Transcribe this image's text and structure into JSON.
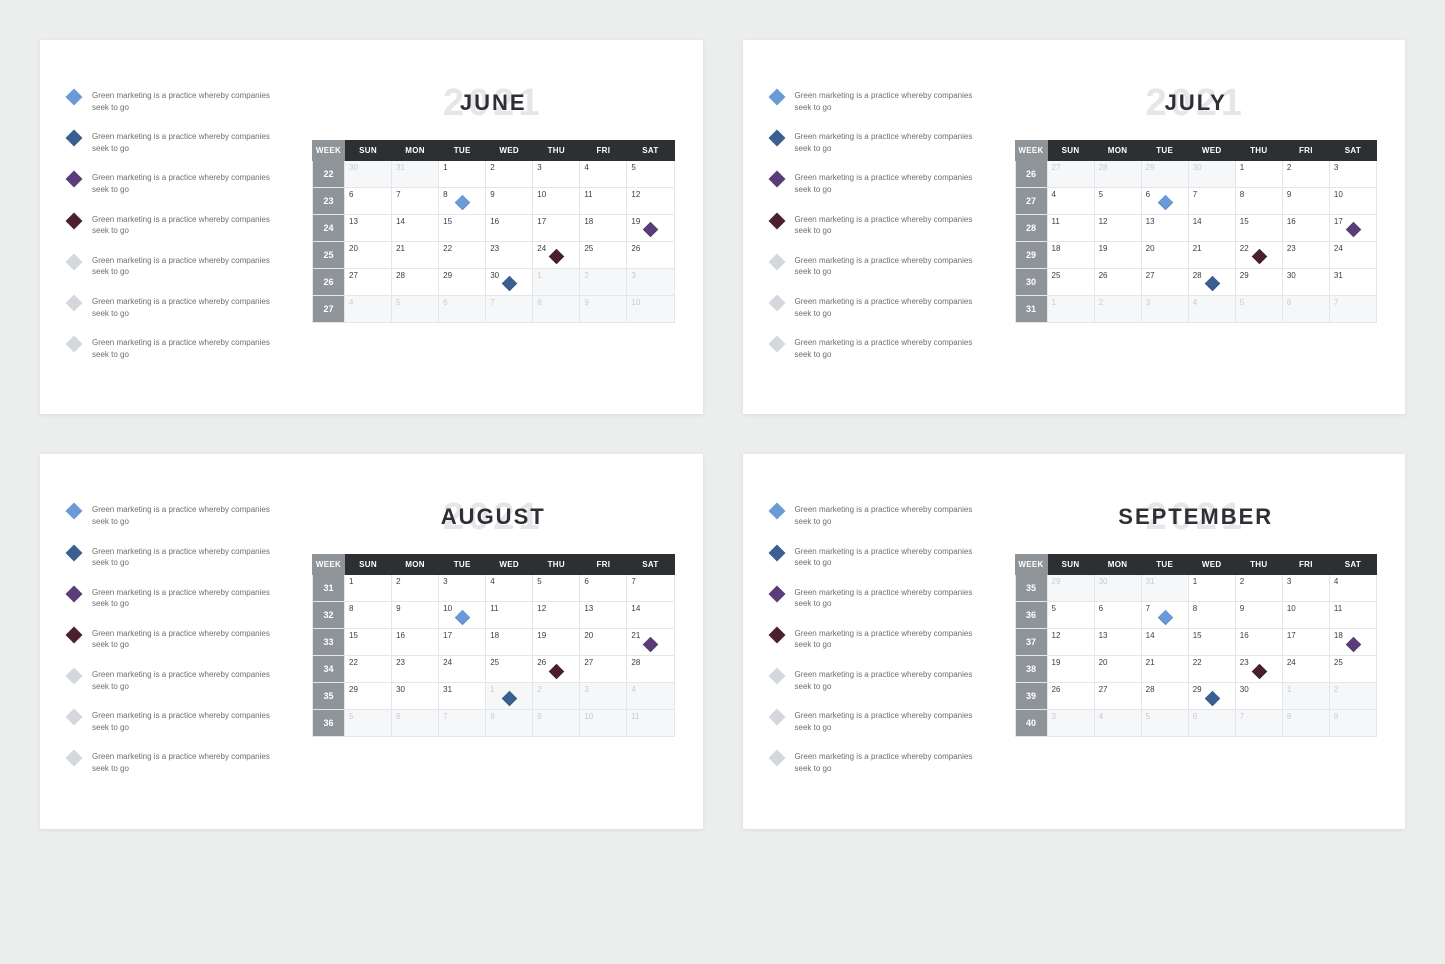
{
  "background_color": "#eceded",
  "slide_bg": "#ffffff",
  "legend_text": "Green marketing is a practice whereby companies seek to go",
  "legend_colors": [
    "#6a9bd8",
    "#3b5f91",
    "#5a3d78",
    "#4a1f2e",
    "#d4d7dc",
    "#d4d7dc",
    "#d4d7dc"
  ],
  "diamond_events_colors": {
    "blue_light": "#6a9bd8",
    "blue_dark": "#3b5f91",
    "purple": "#5a3d78",
    "maroon": "#4a1f2e",
    "gray": "#d4d7dc"
  },
  "year": "2021",
  "day_headers": [
    "WEEK",
    "SUN",
    "MON",
    "TUE",
    "WED",
    "THU",
    "FRI",
    "SAT"
  ],
  "header_bg": "#2d2f33",
  "header_color": "#ffffff",
  "week_col_bg": "#8f9499",
  "border_color": "#e4e6e9",
  "other_month_text": "#c8cbd0",
  "slides": [
    {
      "month": "JUNE",
      "year": "2021",
      "rows": [
        {
          "week": "22",
          "cells": [
            {
              "n": "30",
              "other": true
            },
            {
              "n": "31",
              "other": true
            },
            {
              "n": "1"
            },
            {
              "n": "2"
            },
            {
              "n": "3"
            },
            {
              "n": "4"
            },
            {
              "n": "5"
            }
          ]
        },
        {
          "week": "23",
          "cells": [
            {
              "n": "6"
            },
            {
              "n": "7"
            },
            {
              "n": "8",
              "marker": "blue_light"
            },
            {
              "n": "9"
            },
            {
              "n": "10"
            },
            {
              "n": "11"
            },
            {
              "n": "12"
            }
          ]
        },
        {
          "week": "24",
          "cells": [
            {
              "n": "13"
            },
            {
              "n": "14"
            },
            {
              "n": "15"
            },
            {
              "n": "16"
            },
            {
              "n": "17"
            },
            {
              "n": "18"
            },
            {
              "n": "19",
              "marker": "purple"
            }
          ]
        },
        {
          "week": "25",
          "cells": [
            {
              "n": "20"
            },
            {
              "n": "21"
            },
            {
              "n": "22"
            },
            {
              "n": "23"
            },
            {
              "n": "24",
              "marker": "maroon"
            },
            {
              "n": "25"
            },
            {
              "n": "26"
            }
          ]
        },
        {
          "week": "26",
          "cells": [
            {
              "n": "27"
            },
            {
              "n": "28"
            },
            {
              "n": "29"
            },
            {
              "n": "30",
              "marker": "blue_dark"
            },
            {
              "n": "1",
              "other": true
            },
            {
              "n": "2",
              "other": true
            },
            {
              "n": "3",
              "other": true
            }
          ]
        },
        {
          "week": "27",
          "cells": [
            {
              "n": "4",
              "other": true
            },
            {
              "n": "5",
              "other": true
            },
            {
              "n": "6",
              "other": true
            },
            {
              "n": "7",
              "other": true
            },
            {
              "n": "8",
              "other": true
            },
            {
              "n": "9",
              "other": true
            },
            {
              "n": "10",
              "other": true
            }
          ]
        }
      ]
    },
    {
      "month": "JULY",
      "year": "2021",
      "rows": [
        {
          "week": "26",
          "cells": [
            {
              "n": "27",
              "other": true
            },
            {
              "n": "28",
              "other": true
            },
            {
              "n": "29",
              "other": true
            },
            {
              "n": "30",
              "other": true
            },
            {
              "n": "1"
            },
            {
              "n": "2"
            },
            {
              "n": "3"
            }
          ]
        },
        {
          "week": "27",
          "cells": [
            {
              "n": "4"
            },
            {
              "n": "5"
            },
            {
              "n": "6",
              "marker": "blue_light"
            },
            {
              "n": "7"
            },
            {
              "n": "8"
            },
            {
              "n": "9"
            },
            {
              "n": "10"
            }
          ]
        },
        {
          "week": "28",
          "cells": [
            {
              "n": "11"
            },
            {
              "n": "12"
            },
            {
              "n": "13"
            },
            {
              "n": "14"
            },
            {
              "n": "15"
            },
            {
              "n": "16"
            },
            {
              "n": "17",
              "marker": "purple"
            }
          ]
        },
        {
          "week": "29",
          "cells": [
            {
              "n": "18"
            },
            {
              "n": "19"
            },
            {
              "n": "20"
            },
            {
              "n": "21"
            },
            {
              "n": "22",
              "marker": "maroon"
            },
            {
              "n": "23"
            },
            {
              "n": "24"
            }
          ]
        },
        {
          "week": "30",
          "cells": [
            {
              "n": "25"
            },
            {
              "n": "26"
            },
            {
              "n": "27"
            },
            {
              "n": "28",
              "marker": "blue_dark"
            },
            {
              "n": "29"
            },
            {
              "n": "30"
            },
            {
              "n": "31"
            }
          ]
        },
        {
          "week": "31",
          "cells": [
            {
              "n": "1",
              "other": true
            },
            {
              "n": "2",
              "other": true
            },
            {
              "n": "3",
              "other": true
            },
            {
              "n": "4",
              "other": true
            },
            {
              "n": "5",
              "other": true
            },
            {
              "n": "6",
              "other": true
            },
            {
              "n": "7",
              "other": true
            }
          ]
        }
      ]
    },
    {
      "month": "AUGUST",
      "year": "2021",
      "rows": [
        {
          "week": "31",
          "cells": [
            {
              "n": "1"
            },
            {
              "n": "2"
            },
            {
              "n": "3"
            },
            {
              "n": "4"
            },
            {
              "n": "5"
            },
            {
              "n": "6"
            },
            {
              "n": "7"
            }
          ]
        },
        {
          "week": "32",
          "cells": [
            {
              "n": "8"
            },
            {
              "n": "9"
            },
            {
              "n": "10",
              "marker": "blue_light"
            },
            {
              "n": "11"
            },
            {
              "n": "12"
            },
            {
              "n": "13"
            },
            {
              "n": "14"
            }
          ]
        },
        {
          "week": "33",
          "cells": [
            {
              "n": "15"
            },
            {
              "n": "16"
            },
            {
              "n": "17"
            },
            {
              "n": "18"
            },
            {
              "n": "19"
            },
            {
              "n": "20"
            },
            {
              "n": "21",
              "marker": "purple"
            }
          ]
        },
        {
          "week": "34",
          "cells": [
            {
              "n": "22"
            },
            {
              "n": "23"
            },
            {
              "n": "24"
            },
            {
              "n": "25"
            },
            {
              "n": "26",
              "marker": "maroon"
            },
            {
              "n": "27"
            },
            {
              "n": "28"
            }
          ]
        },
        {
          "week": "35",
          "cells": [
            {
              "n": "29"
            },
            {
              "n": "30"
            },
            {
              "n": "31"
            },
            {
              "n": "1",
              "other": true,
              "marker": "blue_dark"
            },
            {
              "n": "2",
              "other": true
            },
            {
              "n": "3",
              "other": true
            },
            {
              "n": "4",
              "other": true
            }
          ]
        },
        {
          "week": "36",
          "cells": [
            {
              "n": "5",
              "other": true
            },
            {
              "n": "6",
              "other": true
            },
            {
              "n": "7",
              "other": true
            },
            {
              "n": "8",
              "other": true
            },
            {
              "n": "9",
              "other": true
            },
            {
              "n": "10",
              "other": true
            },
            {
              "n": "11",
              "other": true
            }
          ]
        }
      ]
    },
    {
      "month": "SEPTEMBER",
      "year": "2021",
      "rows": [
        {
          "week": "35",
          "cells": [
            {
              "n": "29",
              "other": true
            },
            {
              "n": "30",
              "other": true
            },
            {
              "n": "31",
              "other": true
            },
            {
              "n": "1"
            },
            {
              "n": "2"
            },
            {
              "n": "3"
            },
            {
              "n": "4"
            }
          ]
        },
        {
          "week": "36",
          "cells": [
            {
              "n": "5"
            },
            {
              "n": "6"
            },
            {
              "n": "7",
              "marker": "blue_light"
            },
            {
              "n": "8"
            },
            {
              "n": "9"
            },
            {
              "n": "10"
            },
            {
              "n": "11"
            }
          ]
        },
        {
          "week": "37",
          "cells": [
            {
              "n": "12"
            },
            {
              "n": "13"
            },
            {
              "n": "14"
            },
            {
              "n": "15"
            },
            {
              "n": "16"
            },
            {
              "n": "17"
            },
            {
              "n": "18",
              "marker": "purple"
            }
          ]
        },
        {
          "week": "38",
          "cells": [
            {
              "n": "19"
            },
            {
              "n": "20"
            },
            {
              "n": "21"
            },
            {
              "n": "22"
            },
            {
              "n": "23",
              "marker": "maroon"
            },
            {
              "n": "24"
            },
            {
              "n": "25"
            }
          ]
        },
        {
          "week": "39",
          "cells": [
            {
              "n": "26"
            },
            {
              "n": "27"
            },
            {
              "n": "28"
            },
            {
              "n": "29",
              "marker": "blue_dark"
            },
            {
              "n": "30"
            },
            {
              "n": "1",
              "other": true
            },
            {
              "n": "2",
              "other": true
            }
          ]
        },
        {
          "week": "40",
          "cells": [
            {
              "n": "3",
              "other": true
            },
            {
              "n": "4",
              "other": true
            },
            {
              "n": "5",
              "other": true
            },
            {
              "n": "6",
              "other": true
            },
            {
              "n": "7",
              "other": true
            },
            {
              "n": "8",
              "other": true
            },
            {
              "n": "9",
              "other": true
            }
          ]
        }
      ]
    }
  ]
}
